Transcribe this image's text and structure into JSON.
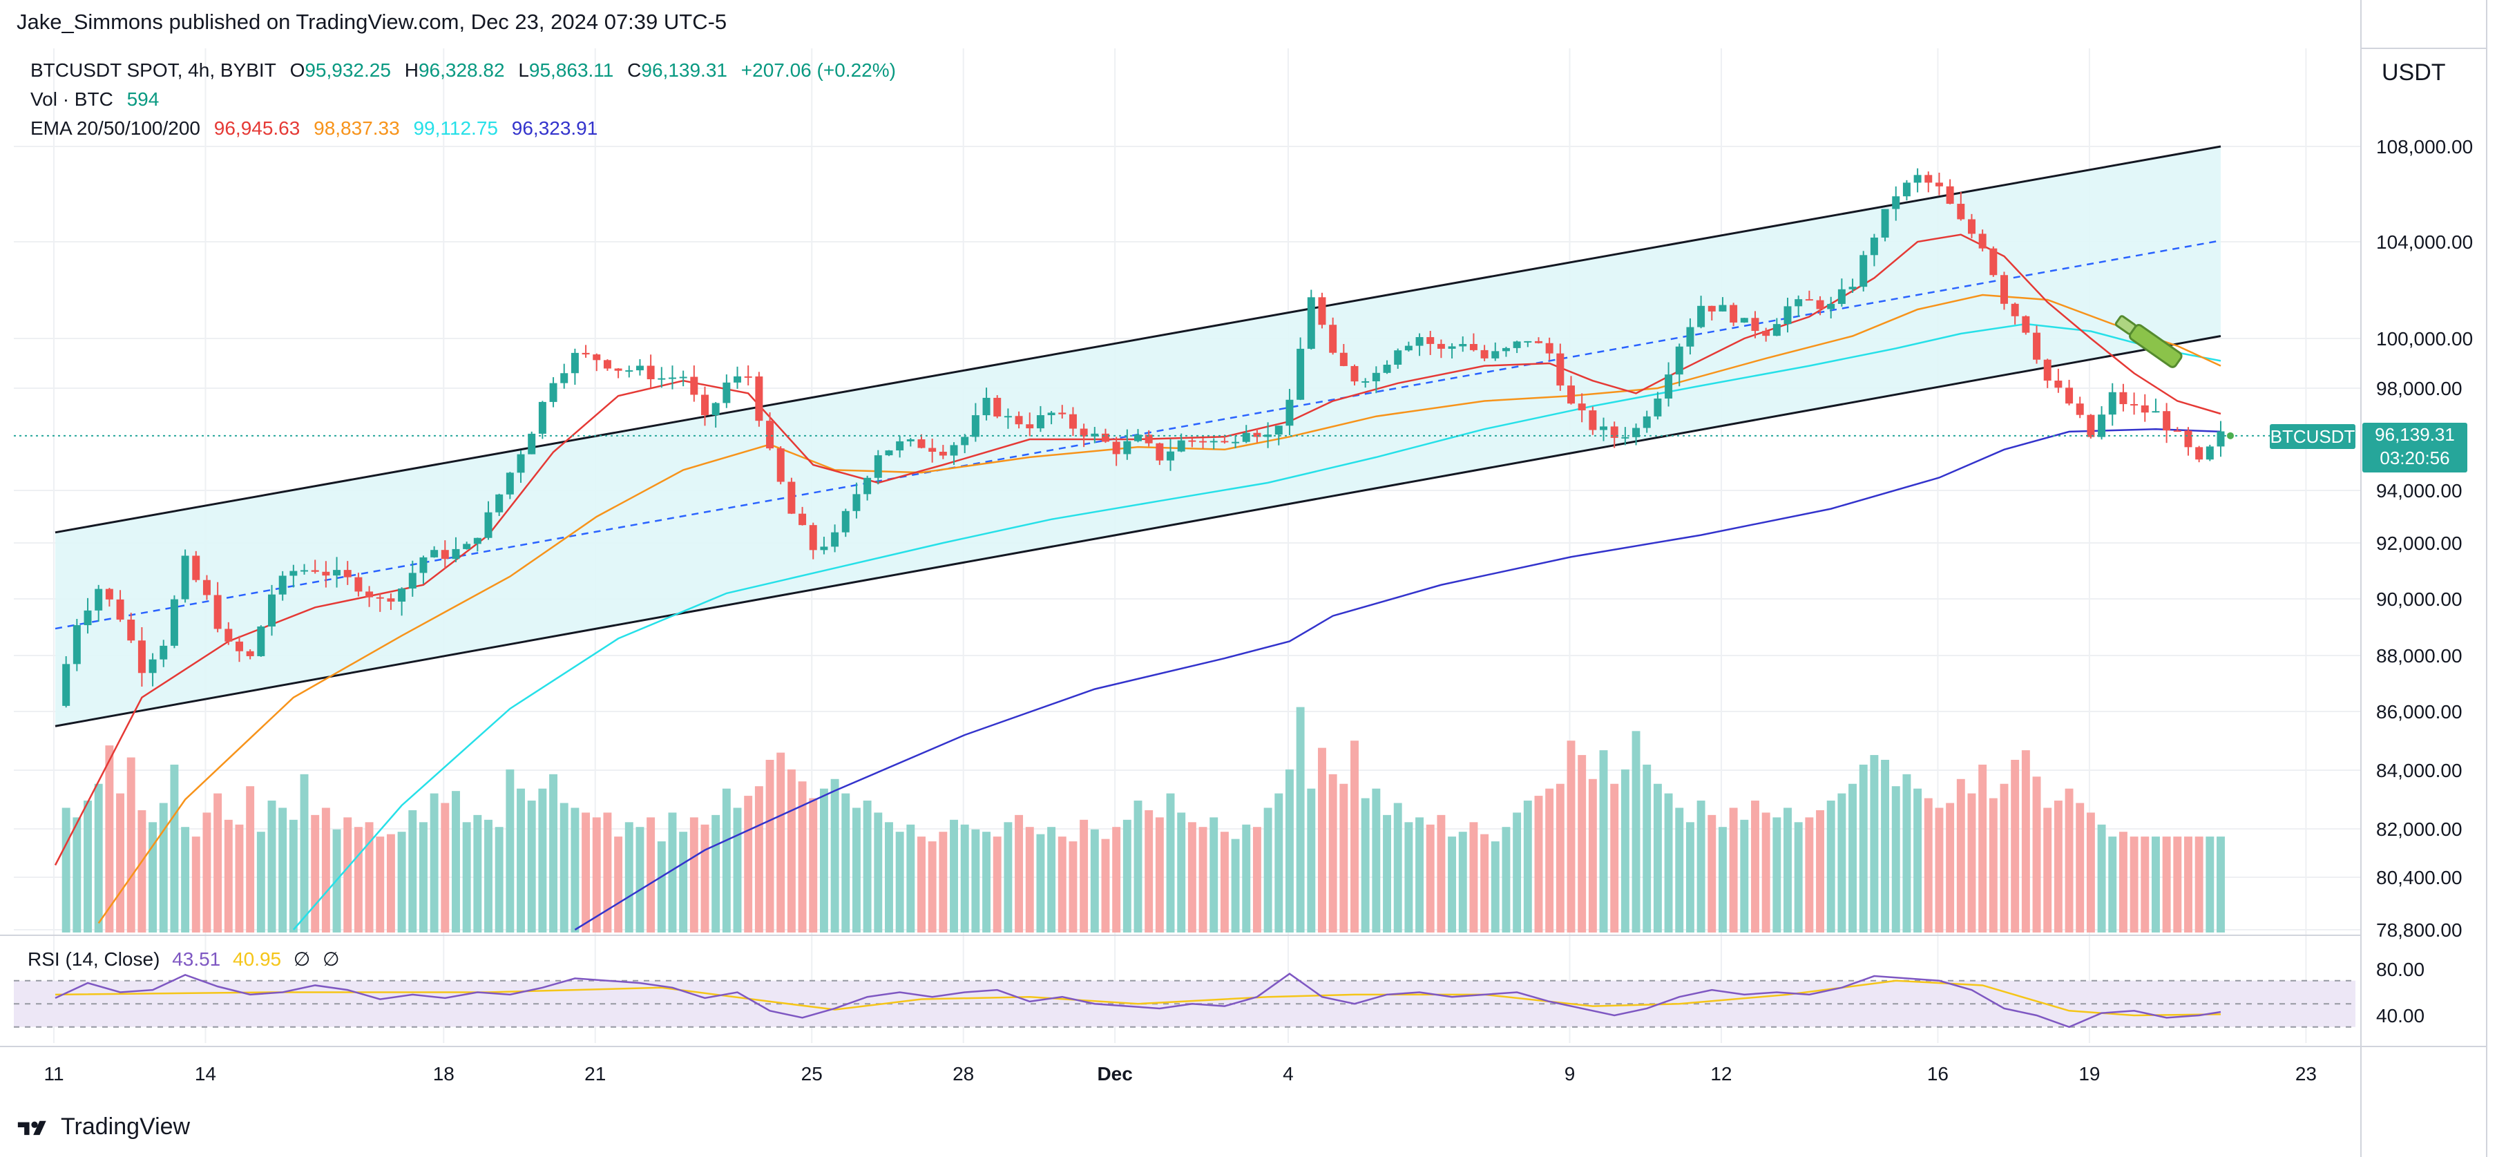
{
  "caption": "Jake_Simmons published on TradingView.com, Dec 23, 2024 07:39 UTC-5",
  "legend": {
    "symbol": "BTCUSDT SPOT, 4h, BYBIT",
    "o_label": "O",
    "o_value": "95,932.25",
    "h_label": "H",
    "h_value": "96,328.82",
    "l_label": "L",
    "l_value": "95,863.11",
    "c_label": "C",
    "c_value": "96,139.31",
    "change": "+207.06 (+0.22%)",
    "vol_label": "Vol · BTC",
    "vol_value": "594",
    "ema_label": "EMA 20/50/100/200",
    "ema20": "96,945.63",
    "ema50": "98,837.33",
    "ema100": "99,112.75",
    "ema200": "96,323.91"
  },
  "currency": "USDT",
  "price_tag": {
    "symbol": "BTCUSDT",
    "price": "96,139.31",
    "countdown": "03:20:56"
  },
  "rsi": {
    "label": "RSI (14, Close)",
    "value": "43.51",
    "ma": "40.95",
    "null1": "∅",
    "null2": "∅"
  },
  "brand": "TradingView",
  "colors": {
    "up": "#26a69a",
    "down": "#ef5350",
    "up_vol": "#8fd3cb",
    "down_vol": "#f7a9a7",
    "ema20": "#e53935",
    "ema50": "#f7931a",
    "ema100": "#26e0e8",
    "ema200": "#3333cc",
    "channel_fill": "#dff6f8",
    "rsi_line": "#7e57c2",
    "rsi_ma": "#f5c518",
    "price_line": "#26a69a"
  },
  "chart_data": {
    "type": "candlestick",
    "timeframe": "4h",
    "y_ticks": [
      "108,000.00",
      "104,000.00",
      "100,000.00",
      "98,000.00",
      "94,000.00",
      "92,000.00",
      "90,000.00",
      "88,000.00",
      "86,000.00",
      "84,000.00",
      "82,000.00",
      "80,400.00",
      "78,800.00"
    ],
    "y_tick_values": [
      108000,
      104000,
      100000,
      98000,
      94000,
      92000,
      90000,
      88000,
      86000,
      84000,
      82000,
      80400,
      78800
    ],
    "x_ticks": [
      "11",
      "14",
      "18",
      "21",
      "25",
      "28",
      "Dec",
      "4",
      "9",
      "12",
      "16",
      "19",
      "23"
    ],
    "rsi_ticks": [
      "80.00",
      "40.00"
    ],
    "rsi_tick_values": [
      80,
      40
    ],
    "close_path": [
      [
        0,
        86200
      ],
      [
        2,
        89200
      ],
      [
        4,
        90400
      ],
      [
        6,
        89400
      ],
      [
        8,
        87600
      ],
      [
        10,
        88500
      ],
      [
        12,
        91300
      ],
      [
        14,
        90000
      ],
      [
        16,
        88300
      ],
      [
        18,
        87900
      ],
      [
        20,
        90200
      ],
      [
        22,
        91000
      ],
      [
        24,
        91100
      ],
      [
        26,
        90800
      ],
      [
        28,
        90500
      ],
      [
        30,
        89900
      ],
      [
        32,
        90400
      ],
      [
        34,
        91500
      ],
      [
        36,
        91600
      ],
      [
        38,
        91800
      ],
      [
        40,
        93000
      ],
      [
        42,
        94700
      ],
      [
        44,
        96400
      ],
      [
        46,
        98400
      ],
      [
        48,
        99300
      ],
      [
        50,
        99200
      ],
      [
        52,
        98800
      ],
      [
        54,
        98700
      ],
      [
        56,
        98400
      ],
      [
        58,
        98500
      ],
      [
        60,
        96700
      ],
      [
        62,
        98200
      ],
      [
        64,
        98500
      ],
      [
        66,
        95400
      ],
      [
        68,
        93100
      ],
      [
        70,
        91800
      ],
      [
        72,
        92200
      ],
      [
        74,
        93900
      ],
      [
        76,
        95500
      ],
      [
        78,
        95800
      ],
      [
        80,
        95800
      ],
      [
        82,
        95600
      ],
      [
        84,
        96100
      ],
      [
        86,
        97400
      ],
      [
        88,
        96800
      ],
      [
        90,
        96600
      ],
      [
        92,
        97000
      ],
      [
        94,
        96500
      ],
      [
        96,
        96100
      ],
      [
        98,
        95600
      ],
      [
        100,
        96000
      ],
      [
        102,
        95300
      ],
      [
        104,
        95900
      ],
      [
        106,
        96000
      ],
      [
        108,
        95800
      ],
      [
        110,
        96500
      ],
      [
        112,
        96100
      ],
      [
        114,
        97300
      ],
      [
        116,
        101800
      ],
      [
        118,
        99200
      ],
      [
        120,
        98400
      ],
      [
        122,
        98600
      ],
      [
        124,
        99700
      ],
      [
        126,
        100100
      ],
      [
        128,
        99500
      ],
      [
        130,
        99900
      ],
      [
        132,
        99200
      ],
      [
        134,
        99500
      ],
      [
        136,
        100000
      ],
      [
        138,
        99400
      ],
      [
        140,
        97300
      ],
      [
        142,
        96500
      ],
      [
        144,
        96100
      ],
      [
        146,
        96400
      ],
      [
        148,
        97800
      ],
      [
        150,
        99800
      ],
      [
        152,
        101400
      ],
      [
        154,
        101200
      ],
      [
        156,
        100600
      ],
      [
        158,
        100300
      ],
      [
        160,
        101300
      ],
      [
        162,
        101500
      ],
      [
        164,
        101300
      ],
      [
        166,
        102300
      ],
      [
        168,
        104300
      ],
      [
        170,
        106000
      ],
      [
        172,
        106700
      ],
      [
        174,
        106200
      ],
      [
        176,
        104800
      ],
      [
        178,
        103900
      ],
      [
        180,
        101600
      ],
      [
        182,
        100400
      ],
      [
        184,
        98300
      ],
      [
        186,
        97400
      ],
      [
        188,
        96100
      ],
      [
        190,
        97700
      ],
      [
        192,
        97200
      ],
      [
        194,
        97000
      ],
      [
        196,
        96100
      ],
      [
        198,
        95000
      ],
      [
        200,
        96139
      ]
    ],
    "volume": [
      0.52,
      0.48,
      0.55,
      0.62,
      0.78,
      0.58,
      0.73,
      0.51,
      0.46,
      0.54,
      0.7,
      0.44,
      0.4,
      0.5,
      0.58,
      0.47,
      0.45,
      0.61,
      0.42,
      0.55,
      0.52,
      0.47,
      0.66,
      0.49,
      0.52,
      0.43,
      0.48,
      0.44,
      0.46,
      0.4,
      0.41,
      0.42,
      0.51,
      0.46,
      0.58,
      0.54,
      0.59,
      0.46,
      0.49,
      0.47,
      0.44,
      0.68,
      0.6,
      0.55,
      0.6,
      0.66,
      0.54,
      0.52,
      0.5,
      0.48,
      0.5,
      0.4,
      0.46,
      0.44,
      0.48,
      0.38,
      0.5,
      0.42,
      0.48,
      0.45,
      0.49,
      0.6,
      0.52,
      0.57,
      0.61,
      0.72,
      0.75,
      0.68,
      0.63,
      0.56,
      0.6,
      0.64,
      0.58,
      0.52,
      0.55,
      0.5,
      0.46,
      0.42,
      0.45,
      0.4,
      0.38,
      0.42,
      0.47,
      0.45,
      0.43,
      0.42,
      0.4,
      0.46,
      0.49,
      0.44,
      0.41,
      0.44,
      0.4,
      0.38,
      0.47,
      0.43,
      0.39,
      0.44,
      0.47,
      0.55,
      0.51,
      0.48,
      0.58,
      0.5,
      0.46,
      0.44,
      0.48,
      0.42,
      0.39,
      0.45,
      0.44,
      0.52,
      0.58,
      0.68,
      0.94,
      0.6,
      0.77,
      0.66,
      0.62,
      0.8,
      0.56,
      0.6,
      0.49,
      0.54,
      0.46,
      0.48,
      0.45,
      0.49,
      0.4,
      0.42,
      0.46,
      0.41,
      0.38,
      0.44,
      0.5,
      0.55,
      0.57,
      0.6,
      0.62,
      0.8,
      0.74,
      0.64,
      0.76,
      0.62,
      0.68,
      0.84,
      0.7,
      0.62,
      0.58,
      0.52,
      0.46,
      0.55,
      0.49,
      0.44,
      0.52,
      0.47,
      0.55,
      0.5,
      0.48,
      0.52,
      0.46,
      0.48,
      0.51,
      0.55,
      0.58,
      0.62,
      0.7,
      0.74,
      0.72,
      0.61,
      0.66,
      0.6,
      0.56,
      0.52,
      0.54,
      0.64,
      0.58,
      0.7,
      0.56,
      0.62,
      0.72,
      0.76,
      0.65,
      0.52,
      0.55,
      0.6,
      0.54,
      0.5,
      0.45,
      0.4,
      0.42
    ],
    "ema20": [
      [
        0,
        80800
      ],
      [
        8,
        86500
      ],
      [
        16,
        88500
      ],
      [
        24,
        89700
      ],
      [
        34,
        90500
      ],
      [
        40,
        92300
      ],
      [
        46,
        95500
      ],
      [
        52,
        97700
      ],
      [
        58,
        98300
      ],
      [
        64,
        97800
      ],
      [
        70,
        95000
      ],
      [
        76,
        94300
      ],
      [
        82,
        95000
      ],
      [
        90,
        96000
      ],
      [
        100,
        96000
      ],
      [
        108,
        96100
      ],
      [
        114,
        96700
      ],
      [
        118,
        97500
      ],
      [
        124,
        98200
      ],
      [
        132,
        98900
      ],
      [
        138,
        99000
      ],
      [
        142,
        98300
      ],
      [
        146,
        97800
      ],
      [
        150,
        98700
      ],
      [
        156,
        100000
      ],
      [
        162,
        100900
      ],
      [
        168,
        102500
      ],
      [
        172,
        104000
      ],
      [
        176,
        104300
      ],
      [
        180,
        103400
      ],
      [
        184,
        101500
      ],
      [
        188,
        100000
      ],
      [
        192,
        98600
      ],
      [
        196,
        97500
      ],
      [
        200,
        97000
      ]
    ],
    "ema50": [
      [
        4,
        79000
      ],
      [
        12,
        83000
      ],
      [
        22,
        86500
      ],
      [
        32,
        88700
      ],
      [
        42,
        90800
      ],
      [
        50,
        93000
      ],
      [
        58,
        94800
      ],
      [
        66,
        95800
      ],
      [
        72,
        94800
      ],
      [
        80,
        94700
      ],
      [
        90,
        95300
      ],
      [
        100,
        95700
      ],
      [
        108,
        95600
      ],
      [
        114,
        96100
      ],
      [
        122,
        96900
      ],
      [
        132,
        97500
      ],
      [
        140,
        97700
      ],
      [
        148,
        98000
      ],
      [
        158,
        99200
      ],
      [
        166,
        100100
      ],
      [
        172,
        101200
      ],
      [
        178,
        101800
      ],
      [
        184,
        101600
      ],
      [
        190,
        100600
      ],
      [
        196,
        99700
      ],
      [
        200,
        98900
      ]
    ],
    "ema100": [
      [
        22,
        78800
      ],
      [
        32,
        82800
      ],
      [
        42,
        86100
      ],
      [
        52,
        88600
      ],
      [
        62,
        90200
      ],
      [
        72,
        91100
      ],
      [
        82,
        92000
      ],
      [
        92,
        92900
      ],
      [
        102,
        93600
      ],
      [
        112,
        94300
      ],
      [
        122,
        95300
      ],
      [
        132,
        96400
      ],
      [
        142,
        97300
      ],
      [
        152,
        98100
      ],
      [
        162,
        98900
      ],
      [
        170,
        99600
      ],
      [
        176,
        100200
      ],
      [
        182,
        100600
      ],
      [
        188,
        100300
      ],
      [
        194,
        99600
      ],
      [
        200,
        99100
      ]
    ],
    "ema200": [
      [
        48,
        78800
      ],
      [
        60,
        81300
      ],
      [
        72,
        83300
      ],
      [
        84,
        85200
      ],
      [
        96,
        86800
      ],
      [
        108,
        87900
      ],
      [
        114,
        88500
      ],
      [
        118,
        89400
      ],
      [
        128,
        90500
      ],
      [
        140,
        91500
      ],
      [
        152,
        92300
      ],
      [
        164,
        93300
      ],
      [
        174,
        94500
      ],
      [
        180,
        95600
      ],
      [
        186,
        96300
      ],
      [
        194,
        96400
      ],
      [
        200,
        96300
      ]
    ],
    "channel": {
      "upper": [
        [
          0,
          92400
        ],
        [
          200,
          108000
        ]
      ],
      "lower": [
        [
          0,
          85500
        ],
        [
          200,
          100100
        ]
      ],
      "mid": [
        [
          0,
          88950
        ],
        [
          200,
          104050
        ]
      ]
    },
    "rsi": [
      [
        0,
        55
      ],
      [
        3,
        68
      ],
      [
        6,
        60
      ],
      [
        9,
        62
      ],
      [
        12,
        75
      ],
      [
        15,
        65
      ],
      [
        18,
        58
      ],
      [
        21,
        60
      ],
      [
        24,
        66
      ],
      [
        27,
        62
      ],
      [
        30,
        54
      ],
      [
        33,
        58
      ],
      [
        36,
        55
      ],
      [
        39,
        60
      ],
      [
        42,
        58
      ],
      [
        45,
        64
      ],
      [
        48,
        72
      ],
      [
        51,
        70
      ],
      [
        54,
        68
      ],
      [
        57,
        64
      ],
      [
        60,
        55
      ],
      [
        63,
        60
      ],
      [
        66,
        44
      ],
      [
        69,
        38
      ],
      [
        72,
        46
      ],
      [
        75,
        56
      ],
      [
        78,
        60
      ],
      [
        81,
        56
      ],
      [
        84,
        60
      ],
      [
        87,
        62
      ],
      [
        90,
        52
      ],
      [
        93,
        56
      ],
      [
        96,
        50
      ],
      [
        99,
        48
      ],
      [
        102,
        46
      ],
      [
        105,
        50
      ],
      [
        108,
        48
      ],
      [
        111,
        56
      ],
      [
        114,
        76
      ],
      [
        117,
        56
      ],
      [
        120,
        50
      ],
      [
        123,
        58
      ],
      [
        126,
        60
      ],
      [
        129,
        56
      ],
      [
        132,
        58
      ],
      [
        135,
        60
      ],
      [
        138,
        52
      ],
      [
        141,
        46
      ],
      [
        144,
        40
      ],
      [
        147,
        46
      ],
      [
        150,
        56
      ],
      [
        153,
        62
      ],
      [
        156,
        58
      ],
      [
        159,
        60
      ],
      [
        162,
        58
      ],
      [
        165,
        64
      ],
      [
        168,
        74
      ],
      [
        171,
        72
      ],
      [
        174,
        70
      ],
      [
        177,
        62
      ],
      [
        180,
        46
      ],
      [
        183,
        40
      ],
      [
        186,
        30
      ],
      [
        189,
        42
      ],
      [
        192,
        44
      ],
      [
        195,
        38
      ],
      [
        198,
        40
      ],
      [
        200,
        43
      ]
    ],
    "rsi_ma": [
      [
        0,
        58
      ],
      [
        20,
        60
      ],
      [
        40,
        60
      ],
      [
        56,
        64
      ],
      [
        66,
        52
      ],
      [
        72,
        45
      ],
      [
        80,
        54
      ],
      [
        90,
        56
      ],
      [
        100,
        50
      ],
      [
        112,
        56
      ],
      [
        120,
        58
      ],
      [
        132,
        58
      ],
      [
        142,
        48
      ],
      [
        150,
        50
      ],
      [
        160,
        58
      ],
      [
        170,
        70
      ],
      [
        178,
        66
      ],
      [
        186,
        44
      ],
      [
        192,
        40
      ],
      [
        200,
        41
      ]
    ]
  }
}
